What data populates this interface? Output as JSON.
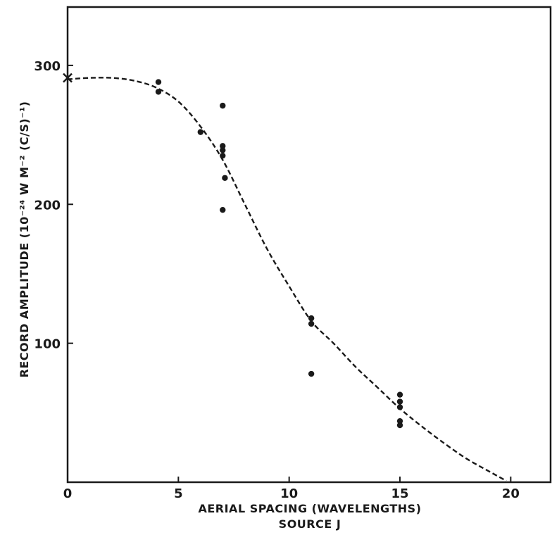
{
  "chart_data": {
    "type": "scatter",
    "title": "",
    "xlabel": "AERIAL SPACING (WAVELENGTHS)",
    "subtitle": "SOURCE J",
    "ylabel": "RECORD AMPLITUDE (10⁻²⁴ W M⁻² (C/S)⁻¹)",
    "xlim": [
      0,
      21.8
    ],
    "ylim": [
      0,
      342
    ],
    "x_ticks": [
      {
        "value": 0,
        "label": "0"
      },
      {
        "value": 5,
        "label": "5"
      },
      {
        "value": 10,
        "label": "10"
      },
      {
        "value": 15,
        "label": "15"
      },
      {
        "value": 20,
        "label": "20"
      }
    ],
    "y_ticks": [
      {
        "value": 100,
        "label": "100"
      },
      {
        "value": 200,
        "label": "200"
      },
      {
        "value": 300,
        "label": "300"
      }
    ],
    "grid": false,
    "legend": "none",
    "colors": {
      "ink": "#1a1a1a",
      "background": "#ffffff"
    },
    "series": [
      {
        "marker": "dot",
        "points": [
          {
            "x": 4.1,
            "y": 288
          },
          {
            "x": 4.1,
            "y": 281
          },
          {
            "x": 6.0,
            "y": 252
          },
          {
            "x": 7.0,
            "y": 271
          },
          {
            "x": 7.0,
            "y": 242
          },
          {
            "x": 7.0,
            "y": 239
          },
          {
            "x": 7.0,
            "y": 235
          },
          {
            "x": 7.1,
            "y": 219
          },
          {
            "x": 7.0,
            "y": 196
          },
          {
            "x": 11.0,
            "y": 118
          },
          {
            "x": 11.0,
            "y": 114
          },
          {
            "x": 11.0,
            "y": 78
          },
          {
            "x": 15.0,
            "y": 63
          },
          {
            "x": 15.0,
            "y": 58
          },
          {
            "x": 15.0,
            "y": 54
          },
          {
            "x": 15.0,
            "y": 44
          },
          {
            "x": 15.0,
            "y": 41
          }
        ]
      },
      {
        "marker": "cross",
        "points": [
          {
            "x": 0,
            "y": 291
          }
        ]
      },
      {
        "marker": "dashed-curve",
        "curve": [
          {
            "x": 0,
            "y": 290
          },
          {
            "x": 1,
            "y": 291
          },
          {
            "x": 2,
            "y": 291
          },
          {
            "x": 3,
            "y": 289
          },
          {
            "x": 4,
            "y": 284
          },
          {
            "x": 5,
            "y": 274
          },
          {
            "x": 6,
            "y": 256
          },
          {
            "x": 7,
            "y": 232
          },
          {
            "x": 8,
            "y": 200
          },
          {
            "x": 9,
            "y": 168
          },
          {
            "x": 10,
            "y": 141
          },
          {
            "x": 11,
            "y": 116
          },
          {
            "x": 12,
            "y": 100
          },
          {
            "x": 13,
            "y": 83
          },
          {
            "x": 14,
            "y": 68
          },
          {
            "x": 15,
            "y": 53
          },
          {
            "x": 16,
            "y": 40
          },
          {
            "x": 17,
            "y": 28
          },
          {
            "x": 18,
            "y": 17
          },
          {
            "x": 19,
            "y": 8
          },
          {
            "x": 19.8,
            "y": 1
          }
        ]
      }
    ]
  }
}
